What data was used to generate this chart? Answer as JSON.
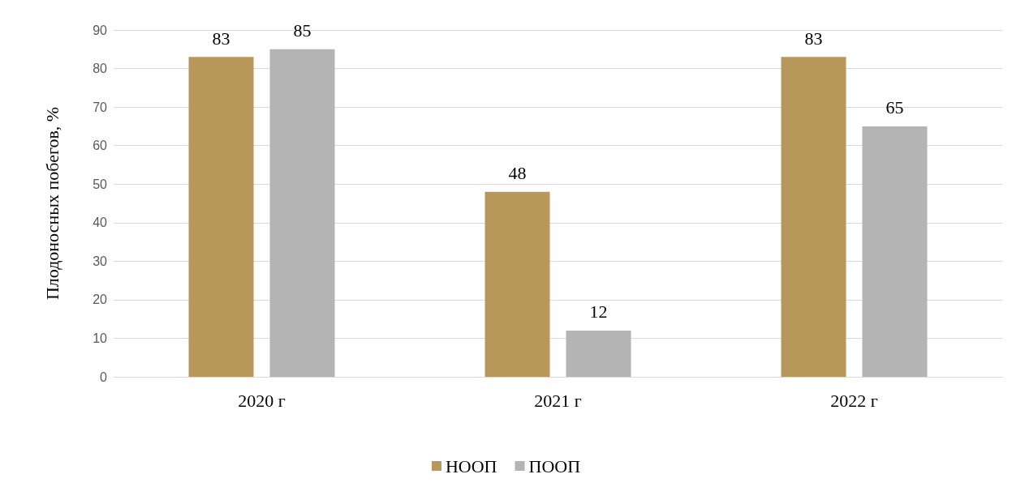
{
  "chart_data": {
    "type": "bar",
    "ylabel": "Плодоносных побегов, %",
    "categories": [
      "2020 г",
      "2021 г",
      "2022 г"
    ],
    "series": [
      {
        "name": "НООП",
        "color": "#b8975a",
        "values": [
          83,
          48,
          83
        ]
      },
      {
        "name": "ПООП",
        "color": "#b4b4b4",
        "values": [
          85,
          12,
          65
        ]
      }
    ],
    "ylim": [
      0,
      90
    ],
    "yticks": [
      0,
      10,
      20,
      30,
      40,
      50,
      60,
      70,
      80,
      90
    ],
    "grid": "y",
    "legend": "bottom",
    "data_labels": true
  }
}
